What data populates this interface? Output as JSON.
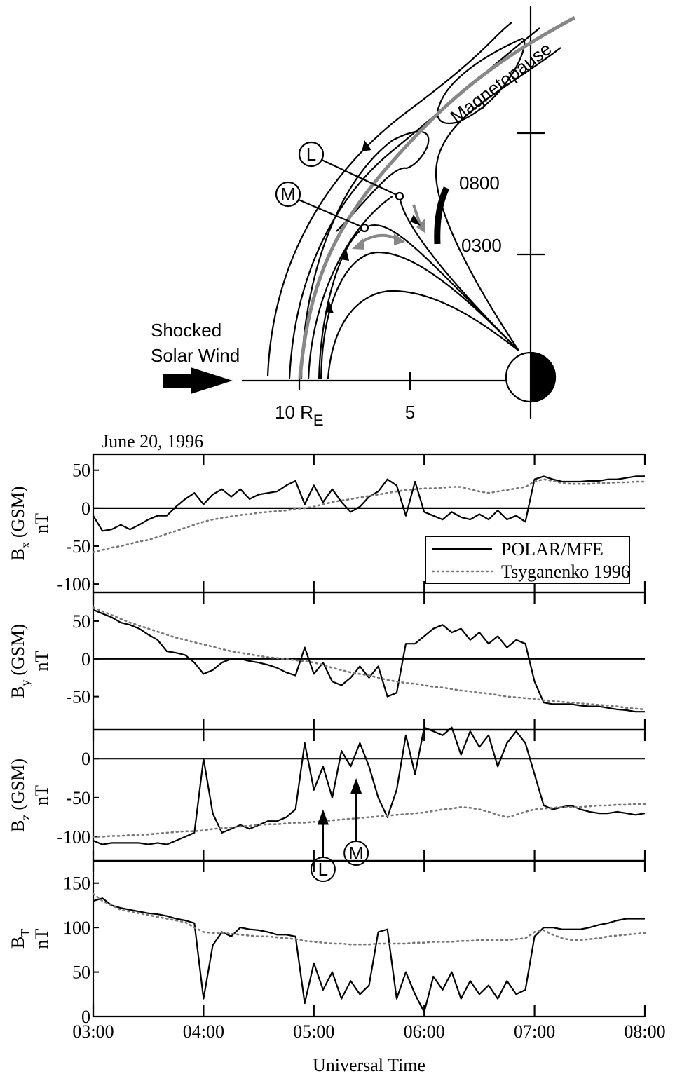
{
  "diagram": {
    "magnetopause": "Magnetopause",
    "l": "L",
    "m": "M",
    "t0800": "0800",
    "t0300": "0300",
    "wind": [
      "Shocked",
      "Solar Wind"
    ],
    "re": [
      "10 R",
      "E"
    ],
    "five": "5"
  },
  "chart_data": [
    {
      "type": "line",
      "title": "June 20, 1996",
      "ylabel": [
        "B",
        "x",
        "(GSM)"
      ],
      "yunit": "nT",
      "x": [
        180,
        185,
        190,
        195,
        200,
        205,
        210,
        215,
        220,
        225,
        230,
        235,
        240,
        245,
        250,
        255,
        260,
        265,
        270,
        275,
        280,
        285,
        290,
        295,
        300,
        305,
        310,
        315,
        320,
        325,
        330,
        335,
        340,
        345,
        350,
        355,
        360,
        365,
        370,
        375,
        380,
        385,
        390,
        395,
        400,
        405,
        410,
        415,
        420,
        425,
        430,
        435,
        440,
        445,
        450,
        455,
        460,
        465,
        470,
        475,
        480
      ],
      "xlim": [
        180,
        480
      ],
      "ylim": [
        -111,
        71
      ],
      "yticks": [
        -100,
        -50,
        0,
        50
      ],
      "hline": 0,
      "legend": "lower right",
      "series": [
        {
          "name": "POLAR/MFE",
          "color": "#000000",
          "style": "solid",
          "values": [
            -10,
            -30,
            -28,
            -22,
            -28,
            -22,
            -15,
            -10,
            -10,
            2,
            12,
            20,
            5,
            18,
            25,
            15,
            25,
            12,
            18,
            20,
            22,
            30,
            36,
            5,
            30,
            8,
            25,
            8,
            -5,
            2,
            15,
            22,
            38,
            30,
            -10,
            35,
            -5,
            -10,
            -15,
            -5,
            -12,
            -15,
            -8,
            -15,
            -3,
            -15,
            -10,
            -18,
            38,
            42,
            38,
            35,
            35,
            35,
            36,
            36,
            38,
            38,
            40,
            42,
            42
          ]
        },
        {
          "name": "Tsyganenko 1996",
          "color": "#777777",
          "style": "dotted",
          "values": [
            -58,
            -55,
            -52,
            -50,
            -47,
            -44,
            -42,
            -38,
            -34,
            -30,
            -26,
            -22,
            -18,
            -15,
            -13,
            -11,
            -9,
            -8,
            -6,
            -5,
            -4,
            -3,
            -1,
            0,
            2,
            5,
            8,
            10,
            12,
            14,
            16,
            18,
            20,
            22,
            24,
            25,
            26,
            26,
            27,
            28,
            28,
            25,
            22,
            20,
            22,
            24,
            26,
            28,
            35,
            38,
            36,
            33,
            32,
            32,
            32,
            33,
            33,
            34,
            34,
            35,
            35
          ]
        }
      ]
    },
    {
      "type": "line",
      "ylabel": [
        "B",
        "y",
        "(GSM)"
      ],
      "yunit": "nT",
      "x": [
        180,
        185,
        190,
        195,
        200,
        205,
        210,
        215,
        220,
        225,
        230,
        235,
        240,
        245,
        250,
        255,
        260,
        265,
        270,
        275,
        280,
        285,
        290,
        295,
        300,
        305,
        310,
        315,
        320,
        325,
        330,
        335,
        340,
        345,
        350,
        355,
        360,
        365,
        370,
        375,
        380,
        385,
        390,
        395,
        400,
        405,
        410,
        415,
        420,
        425,
        430,
        435,
        440,
        445,
        450,
        455,
        460,
        465,
        470,
        475,
        480
      ],
      "xlim": [
        180,
        480
      ],
      "ylim": [
        -94,
        88
      ],
      "yticks": [
        -50,
        0,
        50
      ],
      "hline": 0,
      "series": [
        {
          "color": "#000000",
          "style": "solid",
          "values": [
            65,
            60,
            55,
            48,
            45,
            40,
            32,
            25,
            10,
            8,
            5,
            -5,
            -20,
            -15,
            -5,
            0,
            0,
            -3,
            -5,
            -8,
            -12,
            -18,
            -22,
            15,
            -20,
            -5,
            -30,
            -35,
            -25,
            -10,
            -25,
            -10,
            -50,
            -45,
            20,
            20,
            30,
            40,
            45,
            35,
            40,
            25,
            35,
            20,
            30,
            15,
            25,
            20,
            -30,
            -58,
            -60,
            -60,
            -60,
            -62,
            -63,
            -63,
            -65,
            -67,
            -68,
            -70,
            -70
          ]
        },
        {
          "color": "#777777",
          "style": "dotted",
          "values": [
            68,
            63,
            58,
            53,
            48,
            44,
            40,
            36,
            32,
            28,
            25,
            22,
            19,
            16,
            13,
            10,
            8,
            6,
            4,
            2,
            1,
            0,
            -2,
            -3,
            -5,
            -8,
            -12,
            -15,
            -18,
            -20,
            -22,
            -25,
            -28,
            -30,
            -32,
            -33,
            -35,
            -37,
            -38,
            -40,
            -42,
            -43,
            -45,
            -46,
            -48,
            -50,
            -51,
            -52,
            -53,
            -55,
            -56,
            -57,
            -58,
            -59,
            -60,
            -61,
            -62,
            -63,
            -65,
            -66,
            -67
          ]
        }
      ]
    },
    {
      "type": "line",
      "ylabel": [
        "B",
        "z",
        "(GSM)"
      ],
      "yunit": "nT",
      "x": [
        180,
        185,
        190,
        195,
        200,
        205,
        210,
        215,
        220,
        225,
        230,
        235,
        240,
        245,
        250,
        255,
        260,
        265,
        270,
        275,
        280,
        285,
        290,
        295,
        300,
        305,
        310,
        315,
        320,
        325,
        330,
        335,
        340,
        345,
        350,
        355,
        360,
        365,
        370,
        375,
        380,
        385,
        390,
        395,
        400,
        405,
        410,
        415,
        420,
        425,
        430,
        435,
        440,
        445,
        450,
        455,
        460,
        465,
        470,
        475,
        480
      ],
      "xlim": [
        180,
        480
      ],
      "ylim": [
        -131,
        37
      ],
      "yticks": [
        -100,
        -50,
        0
      ],
      "hline": 0,
      "annotations": [
        {
          "text": "L",
          "x": 305,
          "y": -65
        },
        {
          "text": "M",
          "x": 323,
          "y": -25
        }
      ],
      "series": [
        {
          "color": "#000000",
          "style": "solid",
          "values": [
            -105,
            -110,
            -108,
            -108,
            -108,
            -108,
            -110,
            -108,
            -110,
            -105,
            -100,
            -95,
            0,
            -70,
            -95,
            -90,
            -85,
            -90,
            -85,
            -80,
            -80,
            -75,
            -65,
            20,
            -40,
            -10,
            -50,
            10,
            -10,
            20,
            -10,
            -50,
            -75,
            -40,
            30,
            -20,
            40,
            35,
            30,
            40,
            5,
            35,
            15,
            30,
            -10,
            20,
            35,
            20,
            -20,
            -60,
            -65,
            -62,
            -60,
            -65,
            -68,
            -70,
            -70,
            -68,
            -70,
            -72,
            -70
          ]
        },
        {
          "color": "#777777",
          "style": "dotted",
          "values": [
            -100,
            -100,
            -99,
            -99,
            -98,
            -98,
            -97,
            -96,
            -95,
            -94,
            -93,
            -93,
            -92,
            -90,
            -89,
            -88,
            -87,
            -86,
            -85,
            -84,
            -84,
            -83,
            -82,
            -82,
            -81,
            -80,
            -79,
            -78,
            -77,
            -76,
            -75,
            -74,
            -73,
            -72,
            -71,
            -70,
            -69,
            -67,
            -65,
            -64,
            -62,
            -63,
            -65,
            -68,
            -72,
            -75,
            -72,
            -68,
            -65,
            -64,
            -63,
            -62,
            -62,
            -62,
            -61,
            -60,
            -60,
            -59,
            -59,
            -58,
            -58
          ]
        }
      ]
    },
    {
      "type": "line",
      "ylabel": [
        "B",
        "T"
      ],
      "yunit": "nT",
      "xlabel": "Universal Time",
      "x": [
        180,
        185,
        190,
        195,
        200,
        205,
        210,
        215,
        220,
        225,
        230,
        235,
        240,
        245,
        250,
        255,
        260,
        265,
        270,
        275,
        280,
        285,
        290,
        295,
        300,
        305,
        310,
        315,
        320,
        325,
        330,
        335,
        340,
        345,
        350,
        355,
        360,
        365,
        370,
        375,
        380,
        385,
        390,
        395,
        400,
        405,
        410,
        415,
        420,
        425,
        430,
        435,
        440,
        445,
        450,
        455,
        460,
        465,
        470,
        475,
        480
      ],
      "xlim": [
        180,
        480
      ],
      "ylim": [
        0,
        175
      ],
      "yticks": [
        0,
        50,
        100,
        150
      ],
      "xticks": [
        {
          "value": 180,
          "label": "03:00"
        },
        {
          "value": 240,
          "label": "04:00"
        },
        {
          "value": 300,
          "label": "05:00"
        },
        {
          "value": 360,
          "label": "06:00"
        },
        {
          "value": 420,
          "label": "07:00"
        },
        {
          "value": 480,
          "label": "08:00"
        }
      ],
      "series": [
        {
          "color": "#000000",
          "style": "solid",
          "values": [
            130,
            133,
            125,
            122,
            120,
            118,
            116,
            115,
            113,
            110,
            108,
            105,
            20,
            80,
            95,
            90,
            100,
            98,
            97,
            95,
            92,
            92,
            90,
            15,
            60,
            30,
            50,
            20,
            40,
            25,
            35,
            95,
            98,
            20,
            50,
            25,
            5,
            45,
            30,
            50,
            20,
            40,
            25,
            35,
            20,
            40,
            25,
            30,
            90,
            100,
            100,
            98,
            98,
            98,
            100,
            103,
            105,
            108,
            110,
            110,
            110
          ]
        },
        {
          "color": "#777777",
          "style": "dotted",
          "values": [
            138,
            130,
            125,
            120,
            118,
            116,
            114,
            112,
            110,
            108,
            106,
            100,
            95,
            94,
            94,
            93,
            92,
            91,
            90,
            90,
            89,
            88,
            87,
            85,
            84,
            83,
            82,
            82,
            81,
            81,
            81,
            82,
            82,
            82,
            82,
            83,
            83,
            84,
            84,
            84,
            85,
            85,
            86,
            86,
            86,
            86,
            87,
            88,
            95,
            97,
            92,
            88,
            86,
            86,
            87,
            88,
            90,
            91,
            92,
            93,
            94
          ]
        }
      ]
    }
  ]
}
